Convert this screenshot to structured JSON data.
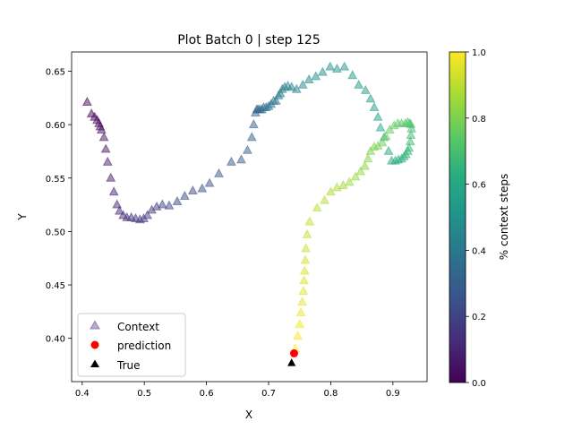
{
  "chart_data": {
    "type": "scatter",
    "title": "Plot Batch 0 | step 125",
    "xlabel": "X",
    "ylabel": "Y",
    "xlim": [
      0.383,
      0.955
    ],
    "ylim": [
      0.3595,
      0.668
    ],
    "x_ticks": [
      0.4,
      0.5,
      0.6,
      0.7,
      0.8,
      0.9
    ],
    "x_tick_labels": [
      "0.4",
      "0.5",
      "0.6",
      "0.7",
      "0.8",
      "0.9"
    ],
    "y_ticks": [
      0.4,
      0.45,
      0.5,
      0.55,
      0.6,
      0.65
    ],
    "y_tick_labels": [
      "0.40",
      "0.45",
      "0.50",
      "0.55",
      "0.60",
      "0.65"
    ],
    "grid": false,
    "legend": {
      "position": "lower-left",
      "entries": [
        {
          "label": "Context",
          "marker": "triangle",
          "color": "#7b5a9c"
        },
        {
          "label": "prediction",
          "marker": "circle",
          "color": "#ff0000"
        },
        {
          "label": "True",
          "marker": "triangle",
          "color": "#000000"
        }
      ]
    },
    "colorbar": {
      "label": "% context steps",
      "colormap": "viridis",
      "range": [
        0.0,
        1.0
      ],
      "ticks": [
        0.0,
        0.2,
        0.4,
        0.6,
        0.8,
        1.0
      ],
      "tick_labels": [
        "0.0",
        "0.2",
        "0.4",
        "0.6",
        "0.8",
        "1.0"
      ]
    },
    "series": [
      {
        "name": "Context",
        "marker": "triangle",
        "alpha": 0.5,
        "color_by": "order",
        "points": [
          [
            0.408,
            0.621
          ],
          [
            0.415,
            0.61
          ],
          [
            0.42,
            0.607
          ],
          [
            0.424,
            0.604
          ],
          [
            0.427,
            0.601
          ],
          [
            0.429,
            0.598
          ],
          [
            0.431,
            0.595
          ],
          [
            0.435,
            0.588
          ],
          [
            0.438,
            0.577
          ],
          [
            0.441,
            0.565
          ],
          [
            0.446,
            0.55
          ],
          [
            0.451,
            0.537
          ],
          [
            0.456,
            0.525
          ],
          [
            0.46,
            0.519
          ],
          [
            0.466,
            0.515
          ],
          [
            0.472,
            0.513
          ],
          [
            0.479,
            0.513
          ],
          [
            0.486,
            0.512
          ],
          [
            0.493,
            0.511
          ],
          [
            0.499,
            0.512
          ],
          [
            0.505,
            0.515
          ],
          [
            0.512,
            0.52
          ],
          [
            0.52,
            0.523
          ],
          [
            0.529,
            0.525
          ],
          [
            0.54,
            0.524
          ],
          [
            0.553,
            0.528
          ],
          [
            0.565,
            0.533
          ],
          [
            0.578,
            0.538
          ],
          [
            0.593,
            0.54
          ],
          [
            0.605,
            0.545
          ],
          [
            0.62,
            0.554
          ],
          [
            0.64,
            0.565
          ],
          [
            0.656,
            0.567
          ],
          [
            0.666,
            0.576
          ],
          [
            0.673,
            0.588
          ],
          [
            0.676,
            0.6
          ],
          [
            0.679,
            0.611
          ],
          [
            0.681,
            0.614
          ],
          [
            0.683,
            0.614
          ],
          [
            0.686,
            0.614
          ],
          [
            0.689,
            0.614
          ],
          [
            0.692,
            0.616
          ],
          [
            0.696,
            0.616
          ],
          [
            0.7,
            0.617
          ],
          [
            0.704,
            0.619
          ],
          [
            0.708,
            0.622
          ],
          [
            0.712,
            0.622
          ],
          [
            0.716,
            0.627
          ],
          [
            0.719,
            0.629
          ],
          [
            0.722,
            0.633
          ],
          [
            0.726,
            0.635
          ],
          [
            0.731,
            0.636
          ],
          [
            0.737,
            0.635
          ],
          [
            0.745,
            0.633
          ],
          [
            0.755,
            0.637
          ],
          [
            0.765,
            0.642
          ],
          [
            0.776,
            0.645
          ],
          [
            0.787,
            0.649
          ],
          [
            0.799,
            0.654
          ],
          [
            0.81,
            0.652
          ],
          [
            0.822,
            0.654
          ],
          [
            0.835,
            0.646
          ],
          [
            0.845,
            0.637
          ],
          [
            0.856,
            0.632
          ],
          [
            0.864,
            0.624
          ],
          [
            0.87,
            0.616
          ],
          [
            0.876,
            0.607
          ],
          [
            0.88,
            0.597
          ],
          [
            0.886,
            0.588
          ],
          [
            0.893,
            0.575
          ],
          [
            0.898,
            0.566
          ],
          [
            0.904,
            0.566
          ],
          [
            0.909,
            0.567
          ],
          [
            0.914,
            0.568
          ],
          [
            0.918,
            0.57
          ],
          [
            0.921,
            0.572
          ],
          [
            0.924,
            0.575
          ],
          [
            0.926,
            0.578
          ],
          [
            0.928,
            0.584
          ],
          [
            0.929,
            0.59
          ],
          [
            0.93,
            0.596
          ],
          [
            0.929,
            0.6
          ],
          [
            0.927,
            0.601
          ],
          [
            0.924,
            0.602
          ],
          [
            0.92,
            0.601
          ],
          [
            0.914,
            0.601
          ],
          [
            0.908,
            0.601
          ],
          [
            0.902,
            0.599
          ],
          [
            0.895,
            0.595
          ],
          [
            0.889,
            0.589
          ],
          [
            0.883,
            0.583
          ],
          [
            0.876,
            0.58
          ],
          [
            0.87,
            0.579
          ],
          [
            0.864,
            0.575
          ],
          [
            0.86,
            0.568
          ],
          [
            0.855,
            0.561
          ],
          [
            0.848,
            0.556
          ],
          [
            0.84,
            0.551
          ],
          [
            0.83,
            0.546
          ],
          [
            0.82,
            0.543
          ],
          [
            0.81,
            0.541
          ],
          [
            0.8,
            0.537
          ],
          [
            0.79,
            0.529
          ],
          [
            0.778,
            0.522
          ],
          [
            0.766,
            0.509
          ],
          [
            0.762,
            0.497
          ],
          [
            0.76,
            0.484
          ],
          [
            0.759,
            0.473
          ],
          [
            0.758,
            0.463
          ],
          [
            0.757,
            0.454
          ],
          [
            0.756,
            0.444
          ],
          [
            0.754,
            0.434
          ],
          [
            0.752,
            0.424
          ],
          [
            0.75,
            0.413
          ],
          [
            0.747,
            0.402
          ],
          [
            0.743,
            0.39
          ]
        ]
      },
      {
        "name": "prediction",
        "marker": "circle",
        "color": "#ff0000",
        "points": [
          [
            0.741,
            0.386
          ]
        ]
      },
      {
        "name": "True",
        "marker": "triangle",
        "color": "#000000",
        "points": [
          [
            0.737,
            0.377
          ]
        ]
      }
    ]
  }
}
